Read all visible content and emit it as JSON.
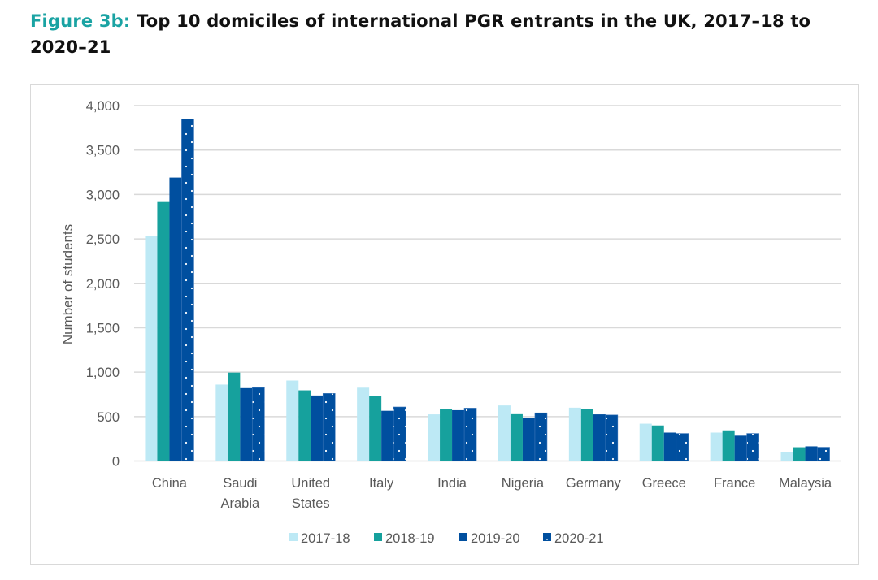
{
  "figure": {
    "label": "Figure 3b:",
    "title_line1": "Top 10 domiciles of international PGR entrants in the UK, 2017–18 to",
    "title_line2": "2020–21"
  },
  "chart_data": {
    "type": "bar",
    "title": "Top 10 domiciles of international PGR entrants in the UK, 2017–18 to 2020–21",
    "xlabel": "",
    "ylabel": "Number of students",
    "ylim": [
      0,
      4000
    ],
    "yticks": [
      0,
      500,
      1000,
      1500,
      2000,
      2500,
      3000,
      3500,
      4000
    ],
    "ytick_labels": [
      "0",
      "500",
      "1,000",
      "1,500",
      "2,000",
      "2,500",
      "3,000",
      "3,500",
      "4,000"
    ],
    "grid": true,
    "legend_position": "bottom",
    "categories": [
      [
        "China"
      ],
      [
        "Saudi",
        "Arabia"
      ],
      [
        "United",
        "States"
      ],
      [
        "Italy"
      ],
      [
        "India"
      ],
      [
        "Nigeria"
      ],
      [
        "Germany"
      ],
      [
        "Greece"
      ],
      [
        "France"
      ],
      [
        "Malaysia"
      ]
    ],
    "series": [
      {
        "name": "2017-18",
        "color": "#bde9f5",
        "pattern": "solid",
        "values": [
          2530,
          860,
          905,
          825,
          525,
          625,
          600,
          420,
          320,
          100
        ]
      },
      {
        "name": "2018-19",
        "color": "#16a19d",
        "pattern": "solid",
        "values": [
          2915,
          995,
          795,
          730,
          585,
          527,
          585,
          400,
          345,
          155
        ]
      },
      {
        "name": "2019-20",
        "color": "#004f9f",
        "pattern": "solid",
        "values": [
          3190,
          820,
          737,
          565,
          572,
          482,
          525,
          320,
          285,
          165
        ]
      },
      {
        "name": "2020-21",
        "color": "#004f9f",
        "pattern": "dotted",
        "values": [
          3850,
          825,
          760,
          608,
          595,
          542,
          518,
          310,
          310,
          155
        ]
      }
    ]
  }
}
